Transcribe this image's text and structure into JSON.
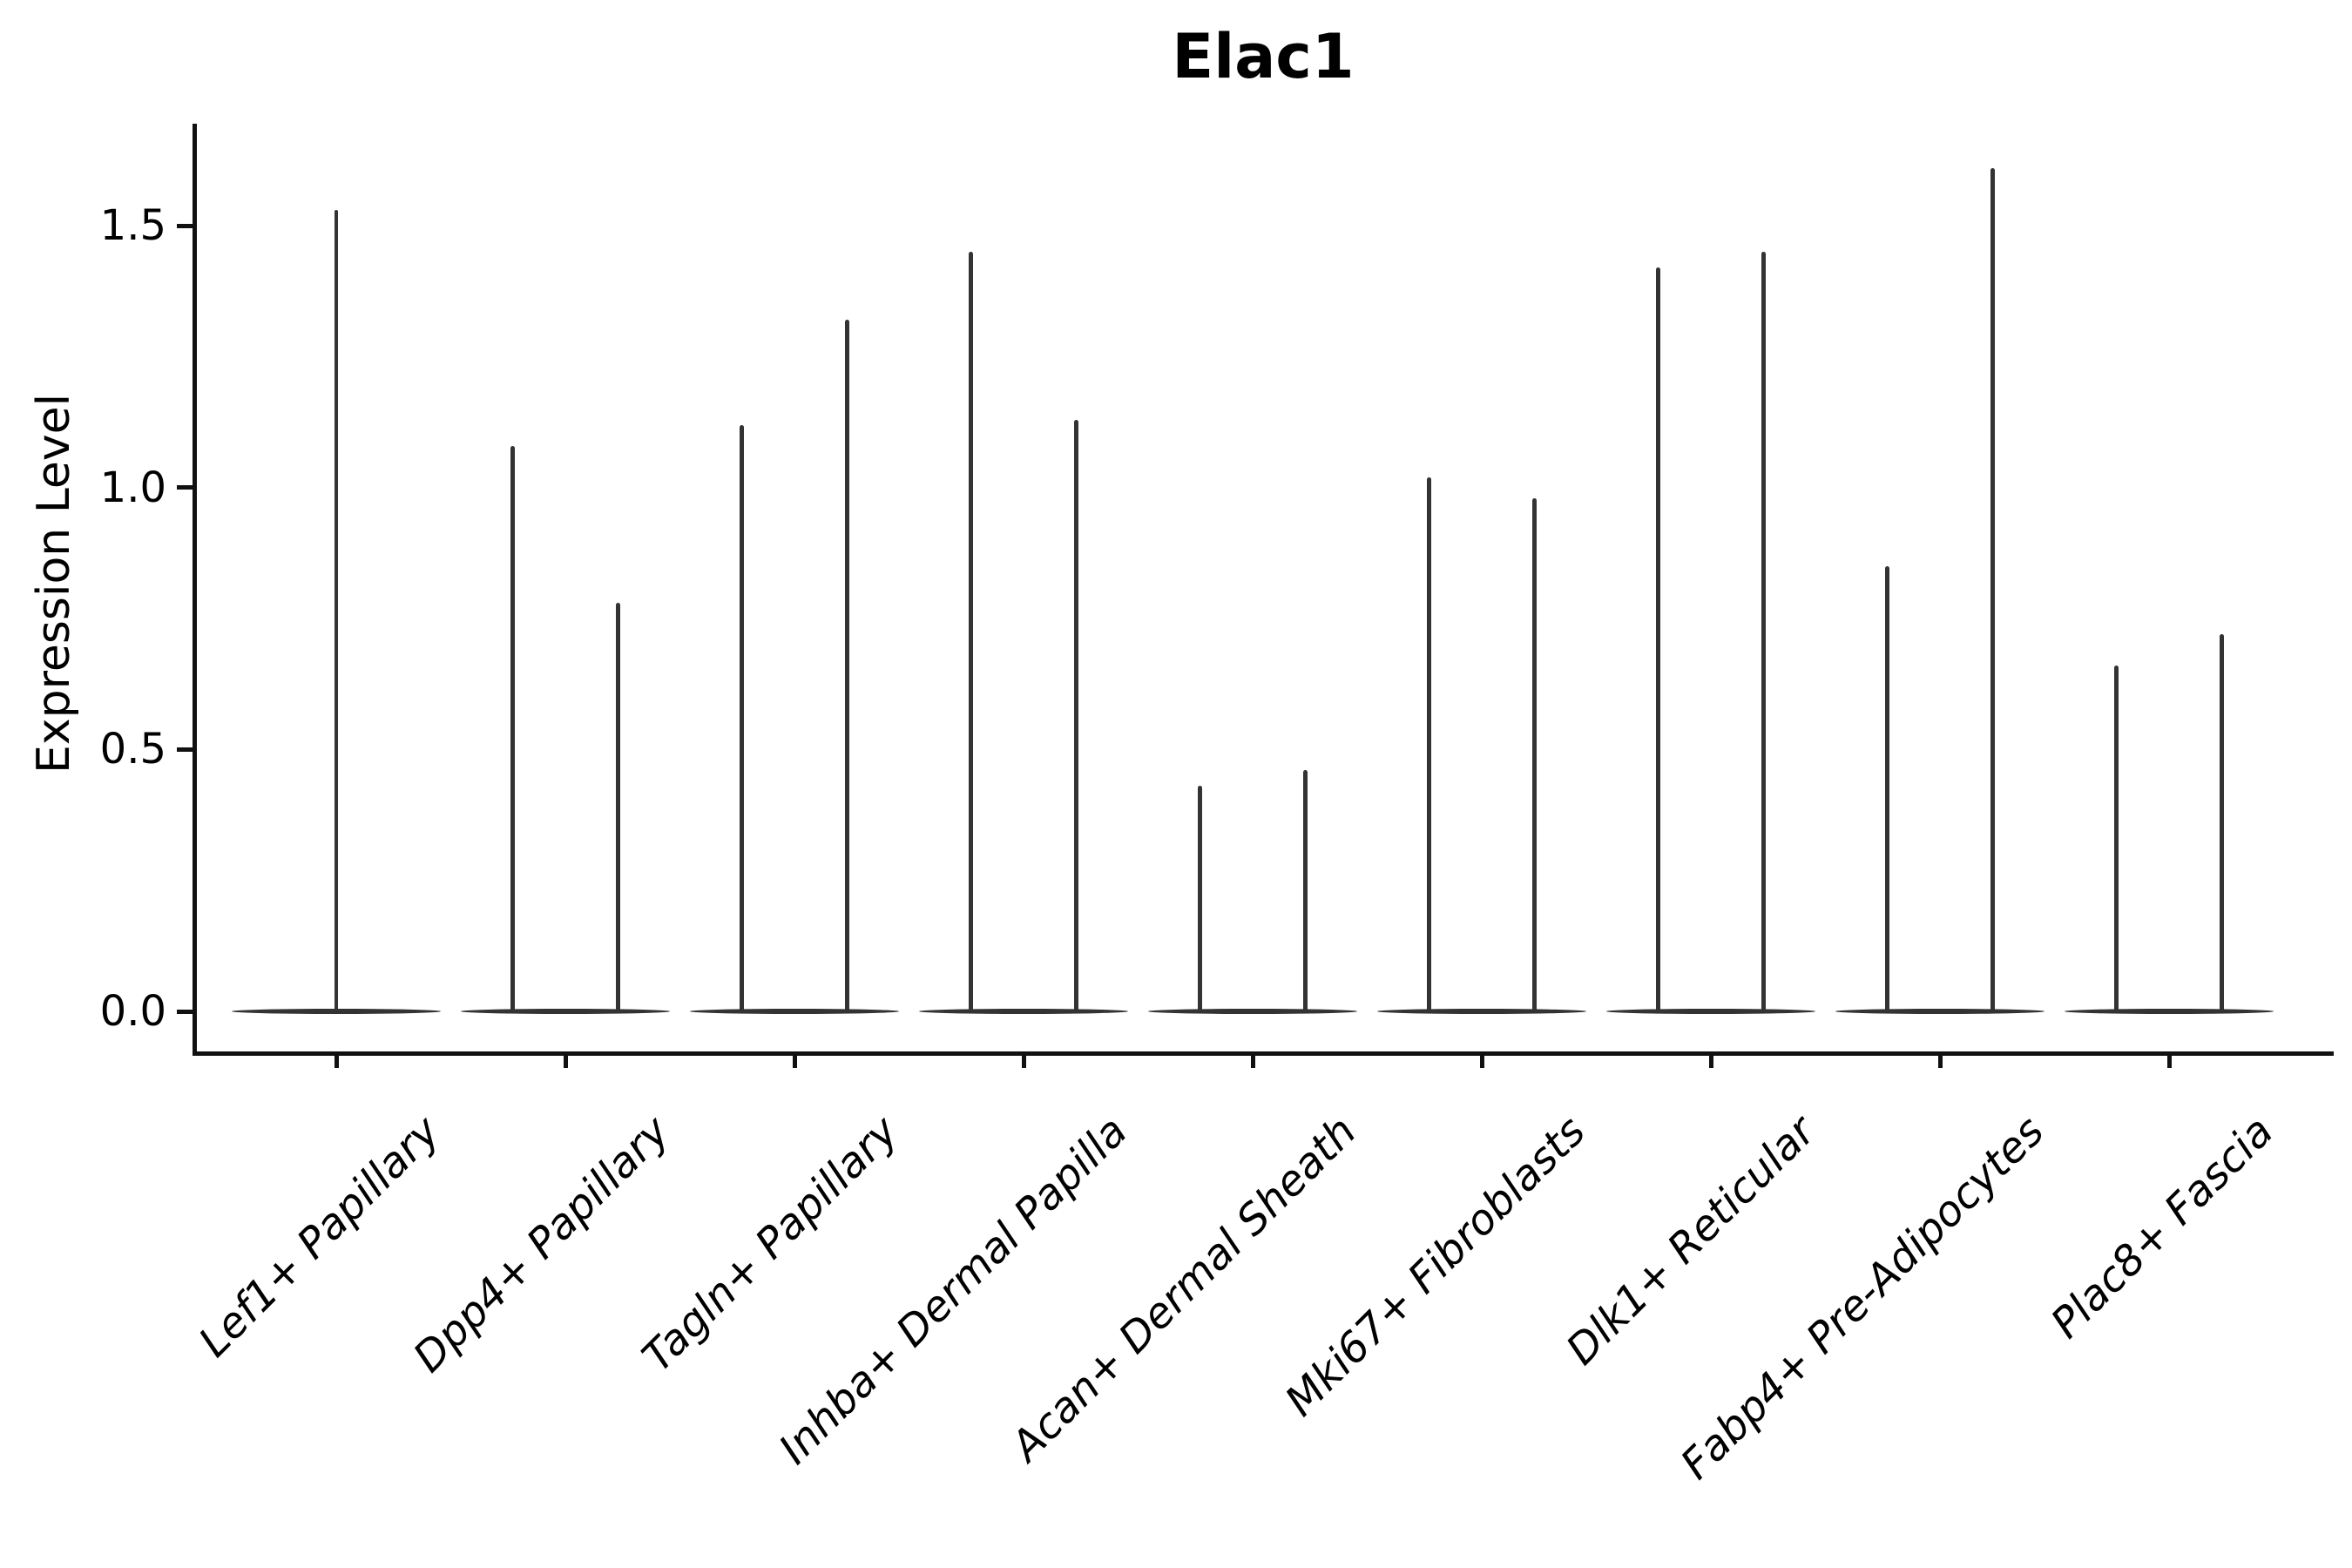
{
  "title": "Elac1",
  "y_axis": {
    "label": "Expression Level",
    "tick_labels": [
      "0.0",
      "0.5",
      "1.0",
      "1.5"
    ],
    "tick_values": [
      0.0,
      0.5,
      1.0,
      1.5
    ]
  },
  "x_axis": {
    "tick_labels": [
      "Lef1+ Papillary",
      "Dpp4+ Papillary",
      "Tagln+ Papillary",
      "Inhba+ Dermal Papilla",
      "Acan+ Dermal Sheath",
      "Mki67+ Fibroblasts",
      "Dlk1+ Reticular",
      "Fabp4+ Pre-Adipocytes",
      "Plac8+ Fascia"
    ]
  },
  "colors": {
    "violin": "#333333",
    "axis": "#111111",
    "text": "#000000",
    "background": "#ffffff"
  },
  "chart_data": {
    "type": "violin",
    "title": "Elac1",
    "xlabel": "",
    "ylabel": "Expression Level",
    "ylim": [
      -0.08,
      1.69
    ],
    "yticks": [
      0.0,
      0.5,
      1.0,
      1.5
    ],
    "grid": false,
    "legend": false,
    "description": "Needle-shaped violins: bulk of cells at expression 0 (flat lens at baseline), thin spike up to the max expression. Most categories contain two side-by-side violins (offsets in fractions of category width); the first category has a single centered violin.",
    "categories": [
      "Lef1+ Papillary",
      "Dpp4+ Papillary",
      "Tagln+ Papillary",
      "Inhba+ Dermal Papilla",
      "Acan+ Dermal Sheath",
      "Mki67+ Fibroblasts",
      "Dlk1+ Reticular",
      "Fabp4+ Pre-Adipocytes",
      "Plac8+ Fascia"
    ],
    "base_halfwidth_frac": 0.46,
    "series": [
      {
        "category": "Lef1+ Papillary",
        "needles": [
          {
            "x_offset_frac": 0.0,
            "peak": 1.53
          }
        ]
      },
      {
        "category": "Dpp4+ Papillary",
        "needles": [
          {
            "x_offset_frac": -0.23,
            "peak": 1.08
          },
          {
            "x_offset_frac": 0.23,
            "peak": 0.78
          }
        ]
      },
      {
        "category": "Tagln+ Papillary",
        "needles": [
          {
            "x_offset_frac": -0.23,
            "peak": 1.12
          },
          {
            "x_offset_frac": 0.23,
            "peak": 1.32
          }
        ]
      },
      {
        "category": "Inhba+ Dermal Papilla",
        "needles": [
          {
            "x_offset_frac": -0.23,
            "peak": 1.45
          },
          {
            "x_offset_frac": 0.23,
            "peak": 1.13
          }
        ]
      },
      {
        "category": "Acan+ Dermal Sheath",
        "needles": [
          {
            "x_offset_frac": -0.23,
            "peak": 0.43
          },
          {
            "x_offset_frac": 0.23,
            "peak": 0.46
          }
        ]
      },
      {
        "category": "Mki67+ Fibroblasts",
        "needles": [
          {
            "x_offset_frac": -0.23,
            "peak": 1.02
          },
          {
            "x_offset_frac": 0.23,
            "peak": 0.98
          }
        ]
      },
      {
        "category": "Dlk1+ Reticular",
        "needles": [
          {
            "x_offset_frac": -0.23,
            "peak": 1.42
          },
          {
            "x_offset_frac": 0.23,
            "peak": 1.45
          }
        ]
      },
      {
        "category": "Fabp4+ Pre-Adipocytes",
        "needles": [
          {
            "x_offset_frac": -0.23,
            "peak": 0.85
          },
          {
            "x_offset_frac": 0.23,
            "peak": 1.61
          }
        ]
      },
      {
        "category": "Plac8+ Fascia",
        "needles": [
          {
            "x_offset_frac": -0.23,
            "peak": 0.66
          },
          {
            "x_offset_frac": 0.23,
            "peak": 0.72
          }
        ]
      }
    ]
  }
}
